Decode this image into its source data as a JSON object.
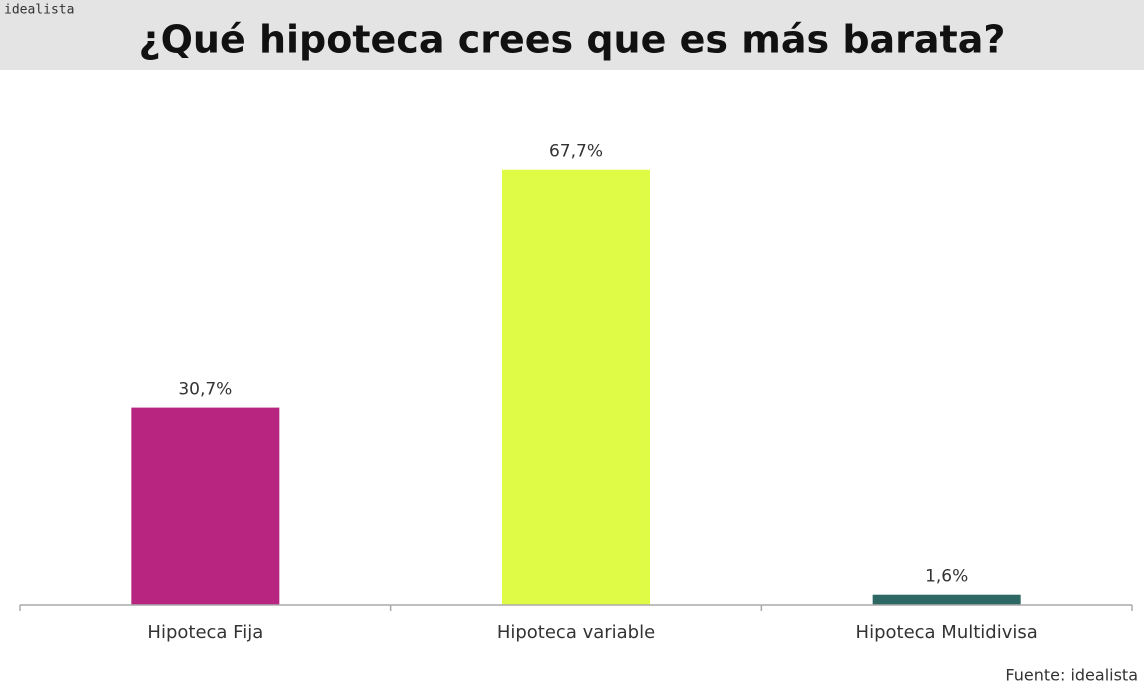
{
  "brand": "idealista",
  "chart_data": {
    "type": "bar",
    "title": "¿Qué hipoteca crees que es más barata?",
    "categories": [
      "Hipoteca Fija",
      "Hipoteca variable",
      "Hipoteca Multidivisa"
    ],
    "values": [
      30.7,
      67.7,
      1.6
    ],
    "value_labels": [
      "30,7%",
      "67,7%",
      "1,6%"
    ],
    "colors": [
      "#b72581",
      "#dffb45",
      "#2e6865"
    ],
    "source": "Fuente: idealista"
  }
}
